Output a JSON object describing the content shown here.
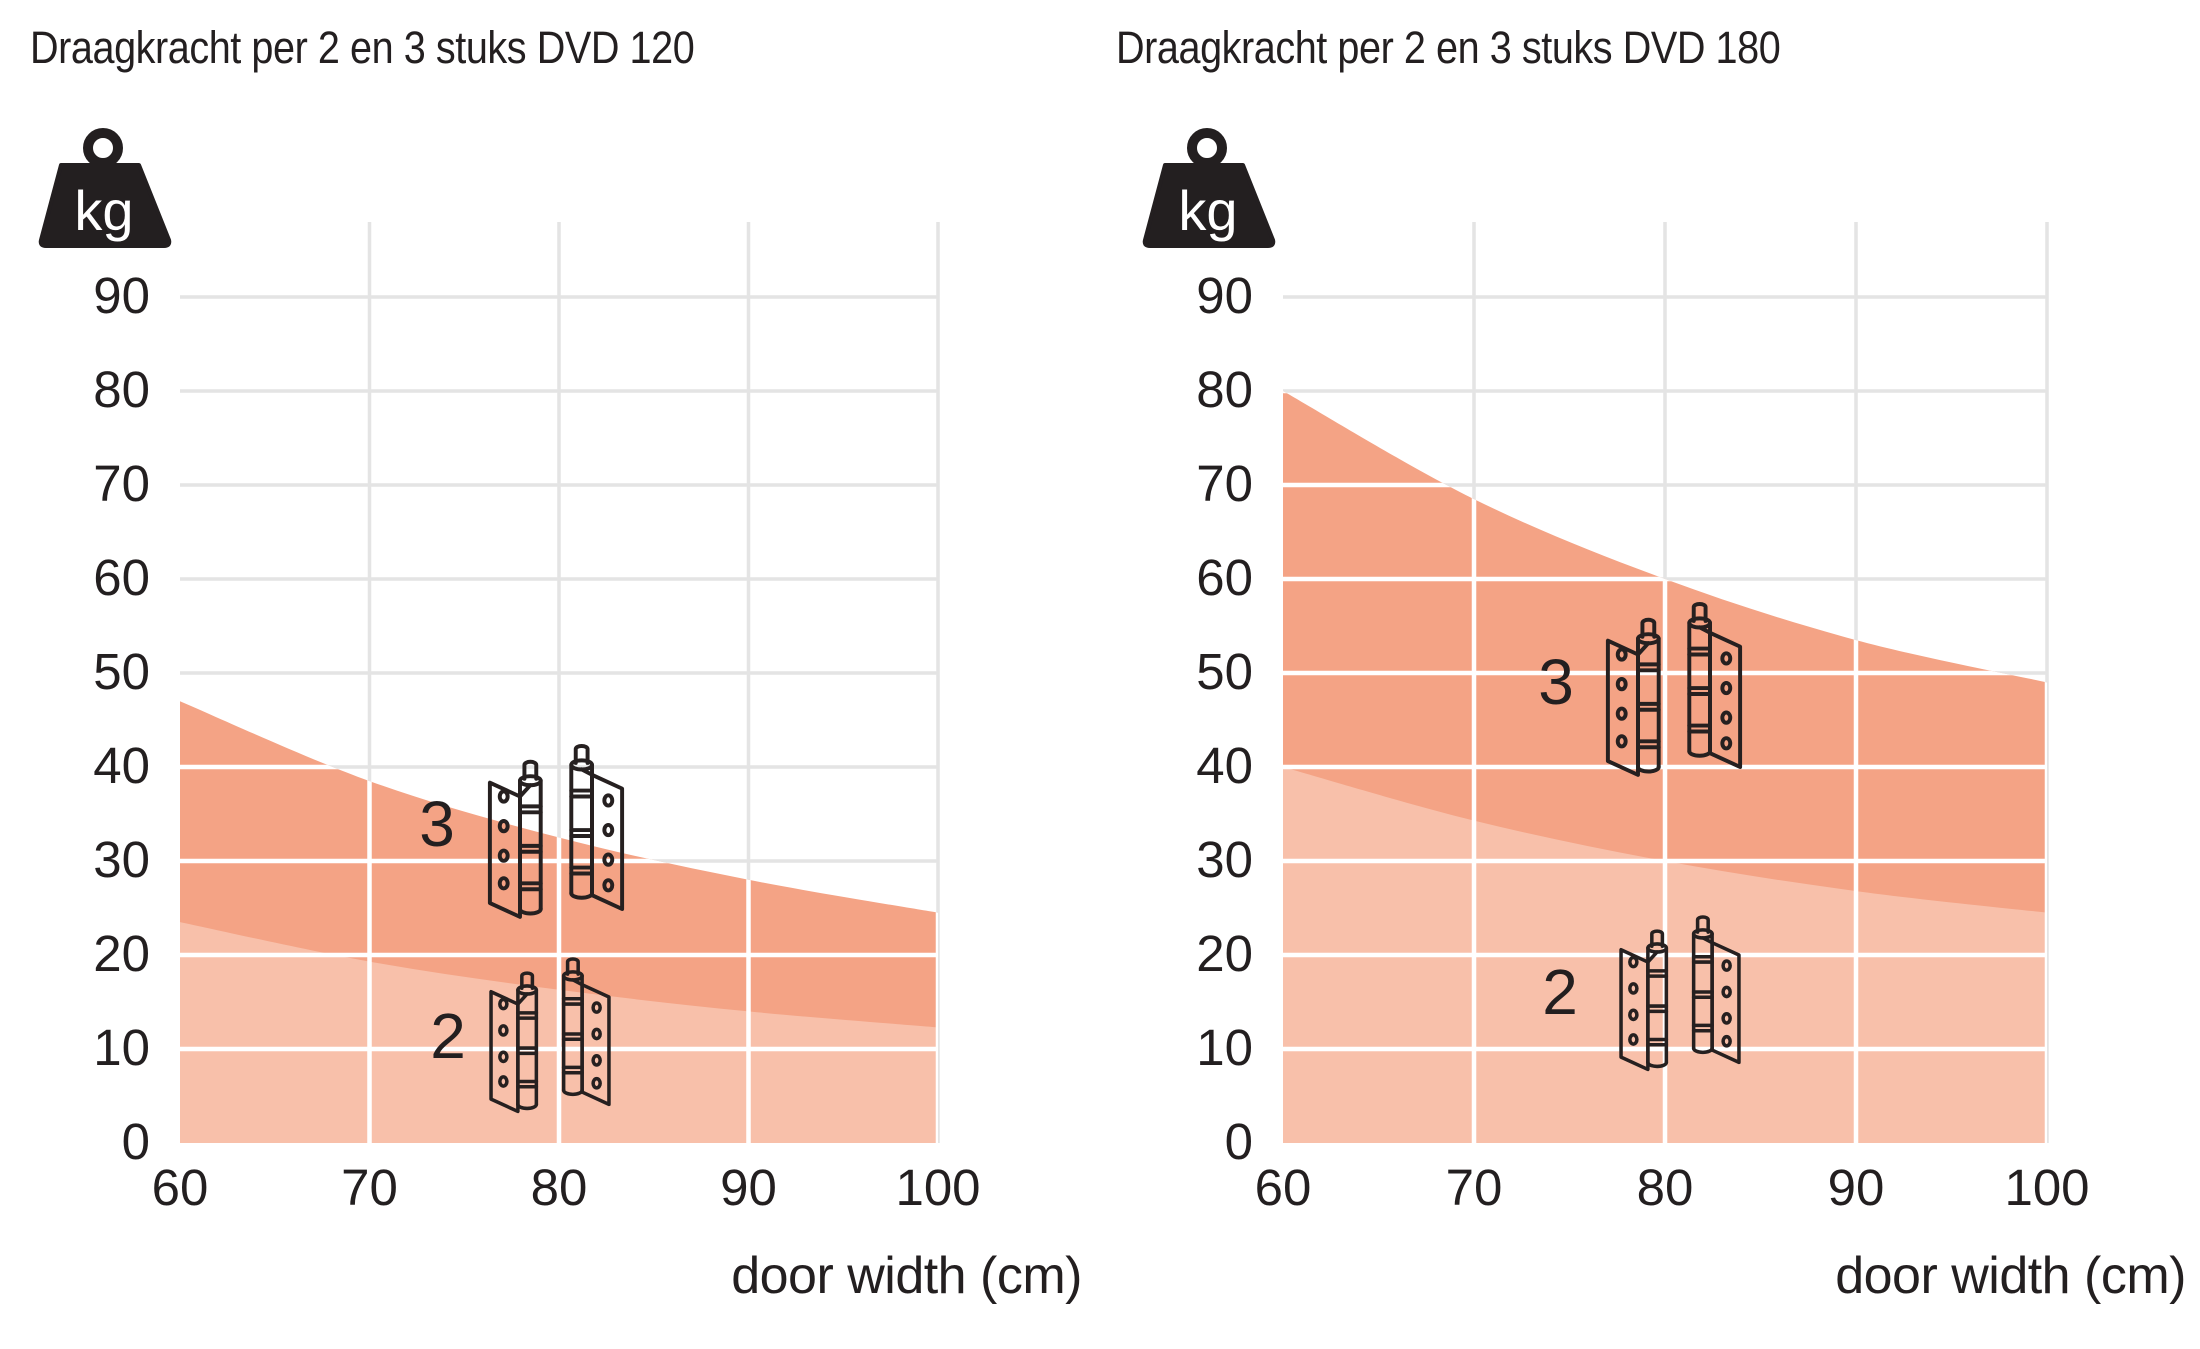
{
  "chart_data": [
    {
      "type": "area",
      "title": "Draagkracht per 2 en 3 stuks DVD 120",
      "xlabel": "door width (cm)",
      "y_unit": "kg",
      "x": [
        60,
        70,
        80,
        90,
        100
      ],
      "x_ticks": [
        "60",
        "70",
        "80",
        "90",
        "100"
      ],
      "y_ticks": [
        "0",
        "10",
        "20",
        "30",
        "40",
        "50",
        "60",
        "70",
        "80",
        "90"
      ],
      "xlim": [
        60,
        100
      ],
      "ylim": [
        0,
        98
      ],
      "grid": true,
      "legend_position": "inside-area-labels",
      "series": [
        {
          "name": "3 stuks (3 hinges)",
          "label": "3",
          "color": "#f4a385",
          "values": [
            47,
            38.5,
            32.5,
            28,
            24.5
          ]
        },
        {
          "name": "2 stuks (2 hinges)",
          "label": "2",
          "color": "#f8c0aa",
          "values": [
            23.5,
            19.3,
            16.3,
            14,
            12.3
          ]
        }
      ]
    },
    {
      "type": "area",
      "title": "Draagkracht per 2 en 3 stuks DVD 180",
      "xlabel": "door width (cm)",
      "y_unit": "kg",
      "x": [
        60,
        70,
        80,
        90,
        100
      ],
      "x_ticks": [
        "60",
        "70",
        "80",
        "90",
        "100"
      ],
      "y_ticks": [
        "0",
        "10",
        "20",
        "30",
        "40",
        "50",
        "60",
        "70",
        "80",
        "90"
      ],
      "xlim": [
        60,
        100
      ],
      "ylim": [
        0,
        98
      ],
      "grid": true,
      "legend_position": "inside-area-labels",
      "series": [
        {
          "name": "3 stuks (3 hinges)",
          "label": "3",
          "color": "#f4a385",
          "values": [
            80,
            68.5,
            60,
            53.5,
            49
          ]
        },
        {
          "name": "2 stuks (2 hinges)",
          "label": "2",
          "color": "#f8c0aa",
          "values": [
            40,
            34.3,
            30,
            26.8,
            24.5
          ]
        }
      ]
    }
  ],
  "style": {
    "grid_color_outside": "#e4e4e4",
    "grid_color_inside": "#ffffff",
    "text_color": "#231f20",
    "background": "#ffffff"
  }
}
